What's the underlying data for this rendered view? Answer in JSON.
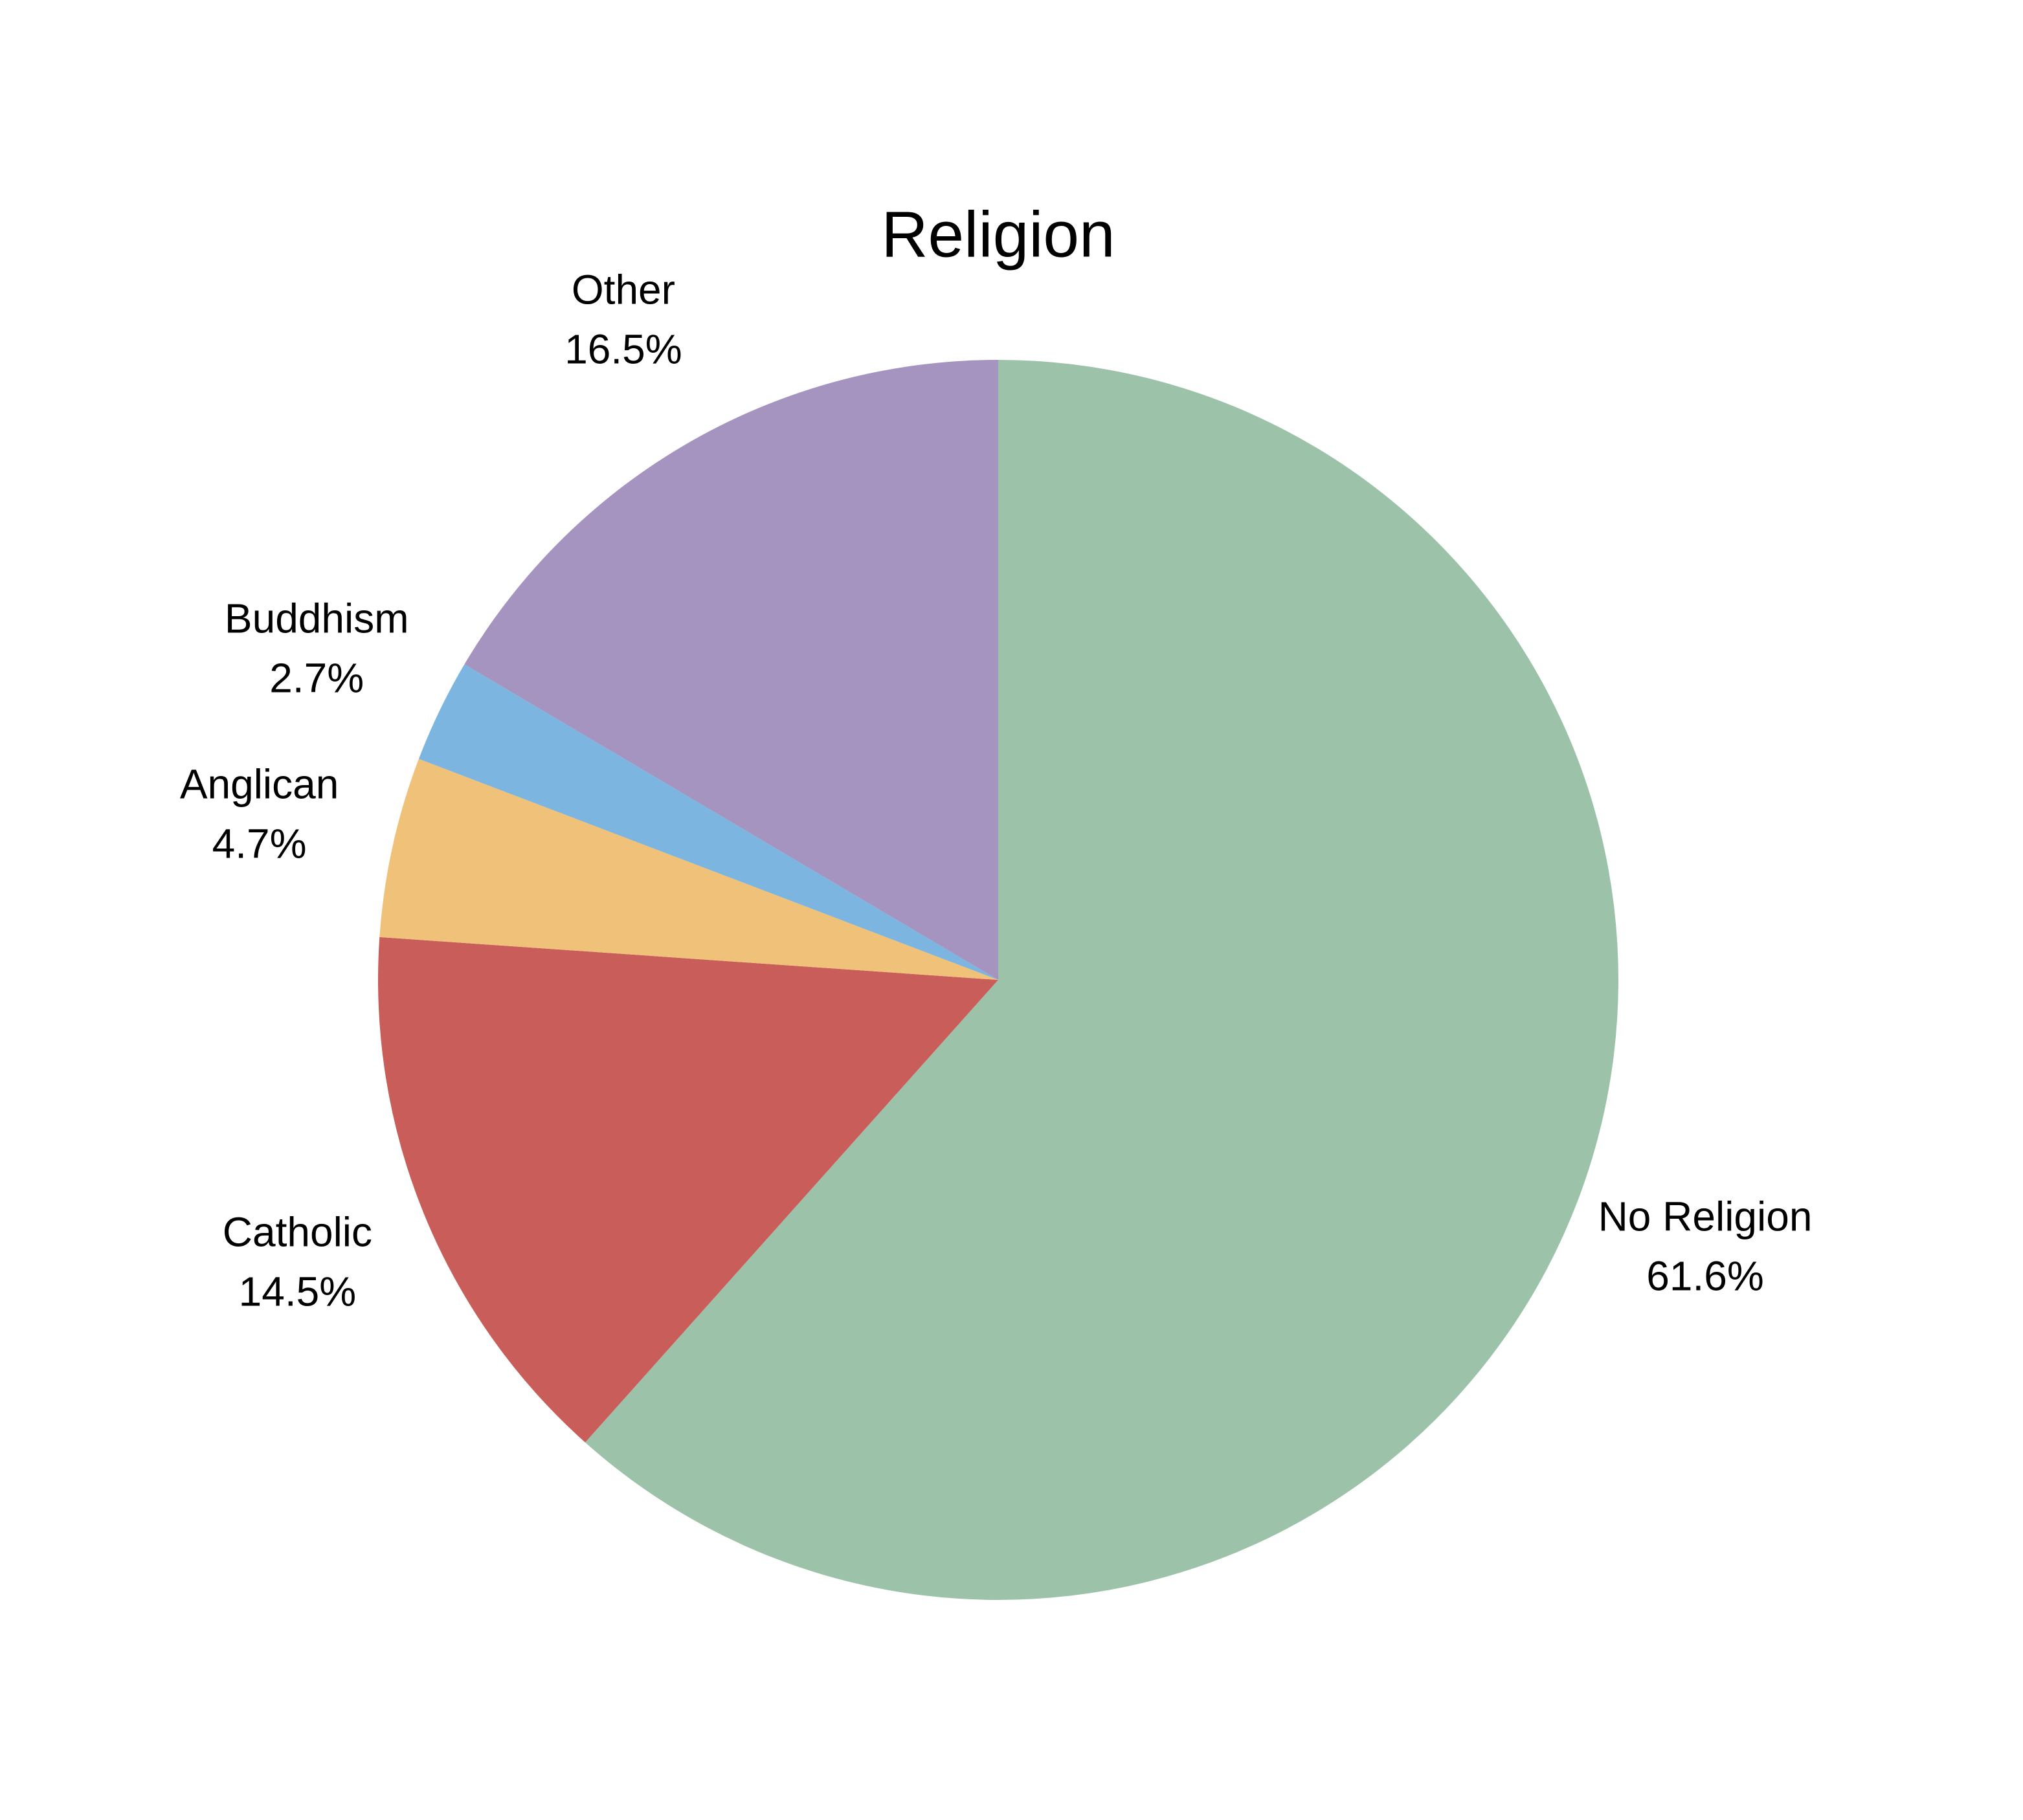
{
  "chart_data": {
    "type": "pie",
    "title": "Religion",
    "categories": [
      "No Religion",
      "Catholic",
      "Anglican",
      "Buddhism",
      "Other"
    ],
    "values": [
      61.6,
      14.5,
      4.7,
      2.7,
      16.5
    ],
    "value_labels": [
      "61.6%",
      "14.5%",
      "4.7%",
      "2.7%",
      "16.5%"
    ],
    "colors": [
      "#9cc3a9",
      "#c95d5a",
      "#f0c179",
      "#7bb5e0",
      "#a593c0"
    ]
  }
}
